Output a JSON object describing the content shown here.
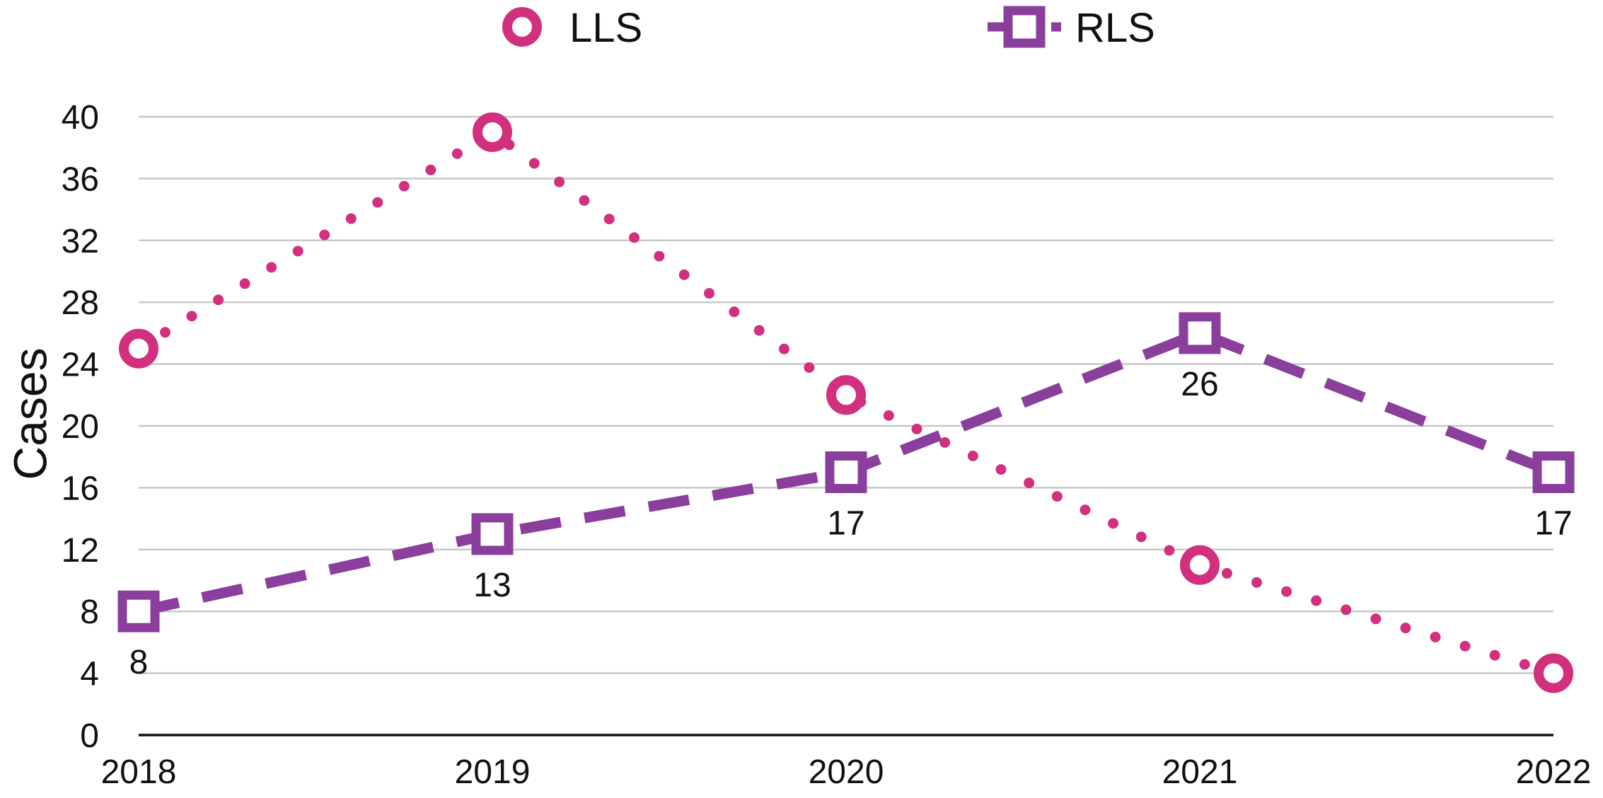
{
  "chart_data": {
    "type": "line",
    "title": "",
    "xlabel": "",
    "ylabel": "Cases",
    "categories": [
      "2018",
      "2019",
      "2020",
      "2021",
      "2022"
    ],
    "ylim": [
      0,
      40
    ],
    "yticks": [
      0,
      4,
      8,
      12,
      16,
      20,
      24,
      28,
      32,
      36,
      40
    ],
    "grid": true,
    "legend_position": "top",
    "series": [
      {
        "name": "LLS",
        "values": [
          25,
          39,
          22,
          11,
          4
        ],
        "color": "#d2307e",
        "marker": "circle",
        "line_style": "dotted",
        "show_labels": false
      },
      {
        "name": "RLS",
        "values": [
          8,
          13,
          17,
          26,
          17
        ],
        "color": "#8a3f9c",
        "marker": "square",
        "line_style": "dashed",
        "show_labels": true,
        "labels": [
          "8",
          "13",
          "17",
          "26",
          "17"
        ]
      }
    ]
  }
}
